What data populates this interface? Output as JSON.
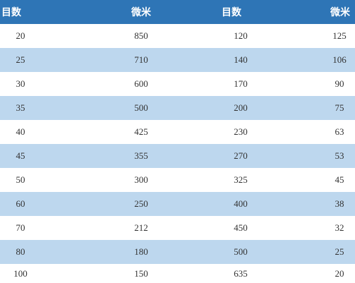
{
  "table": {
    "headers": [
      "目数",
      "微米",
      "目数",
      "微米"
    ],
    "rows": [
      [
        "20",
        "850",
        "120",
        "125"
      ],
      [
        "25",
        "710",
        "140",
        "106"
      ],
      [
        "30",
        "600",
        "170",
        "90"
      ],
      [
        "35",
        "500",
        "200",
        "75"
      ],
      [
        "40",
        "425",
        "230",
        "63"
      ],
      [
        "45",
        "355",
        "270",
        "53"
      ],
      [
        "50",
        "300",
        "325",
        "45"
      ],
      [
        "60",
        "250",
        "400",
        "38"
      ],
      [
        "70",
        "212",
        "450",
        "32"
      ],
      [
        "80",
        "180",
        "500",
        "25"
      ],
      [
        "100",
        "150",
        "635",
        "20"
      ]
    ]
  },
  "colors": {
    "header_bg": "#2e75b6",
    "stripe_bg": "#bdd7ee",
    "row_bg": "#ffffff"
  }
}
